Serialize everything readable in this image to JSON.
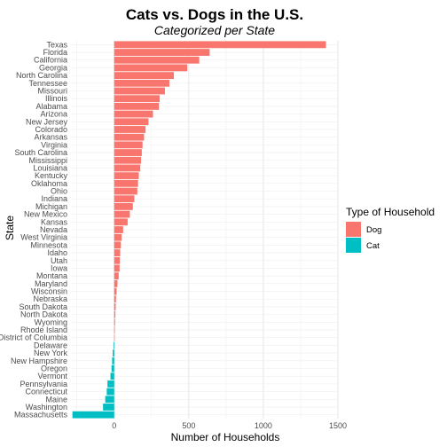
{
  "chart_data": {
    "type": "bar",
    "orientation": "horizontal",
    "title": "Cats vs. Dogs in the U.S.",
    "subtitle": "Categorized per State",
    "xlabel": "Number of Households",
    "ylabel": "State",
    "xlim": [
      -290,
      1500
    ],
    "xticks": [
      0,
      500,
      1000,
      1500
    ],
    "xtick_labels": [
      "0",
      "500",
      "1000",
      "1500"
    ],
    "grid": true,
    "legend": {
      "title": "Type of Household",
      "position": "right",
      "entries": [
        {
          "label": "Dog",
          "color": "#F8766D"
        },
        {
          "label": "Cat",
          "color": "#00BFC4"
        }
      ]
    },
    "colors": {
      "Dog": "#F8766D",
      "Cat": "#00BFC4"
    },
    "categories": [
      "Texas",
      "Florida",
      "California",
      "Georgia",
      "North Carolina",
      "Tennessee",
      "Missouri",
      "Illinois",
      "Alabama",
      "Arizona",
      "New Jersey",
      "Colorado",
      "Arkansas",
      "Virginia",
      "South Carolina",
      "Mississippi",
      "Louisiana",
      "Kentucky",
      "Oklahoma",
      "Ohio",
      "Indiana",
      "Michigan",
      "New Mexico",
      "Kansas",
      "Nevada",
      "West Virginia",
      "Minnesota",
      "Idaho",
      "Utah",
      "Iowa",
      "Montana",
      "Maryland",
      "Wisconsin",
      "Nebraska",
      "South Dakota",
      "North Dakota",
      "Wyoming",
      "Rhode Island",
      "District of Columbia",
      "Delaware",
      "New York",
      "New Hampshire",
      "Oregon",
      "Vermont",
      "Pennsylvania",
      "Connecticut",
      "Maine",
      "Washington",
      "Massachusetts"
    ],
    "values": [
      1420,
      640,
      570,
      490,
      400,
      370,
      340,
      305,
      300,
      260,
      230,
      210,
      200,
      190,
      185,
      180,
      175,
      165,
      160,
      155,
      135,
      125,
      105,
      90,
      60,
      50,
      45,
      40,
      38,
      36,
      30,
      22,
      16,
      12,
      10,
      8,
      6,
      4,
      2,
      -5,
      -10,
      -14,
      -18,
      -25,
      -45,
      -50,
      -60,
      -75,
      -280
    ],
    "types": [
      "Dog",
      "Dog",
      "Dog",
      "Dog",
      "Dog",
      "Dog",
      "Dog",
      "Dog",
      "Dog",
      "Dog",
      "Dog",
      "Dog",
      "Dog",
      "Dog",
      "Dog",
      "Dog",
      "Dog",
      "Dog",
      "Dog",
      "Dog",
      "Dog",
      "Dog",
      "Dog",
      "Dog",
      "Dog",
      "Dog",
      "Dog",
      "Dog",
      "Dog",
      "Dog",
      "Dog",
      "Dog",
      "Dog",
      "Dog",
      "Dog",
      "Dog",
      "Dog",
      "Dog",
      "Dog",
      "Cat",
      "Cat",
      "Cat",
      "Cat",
      "Cat",
      "Cat",
      "Cat",
      "Cat",
      "Cat",
      "Cat"
    ]
  }
}
